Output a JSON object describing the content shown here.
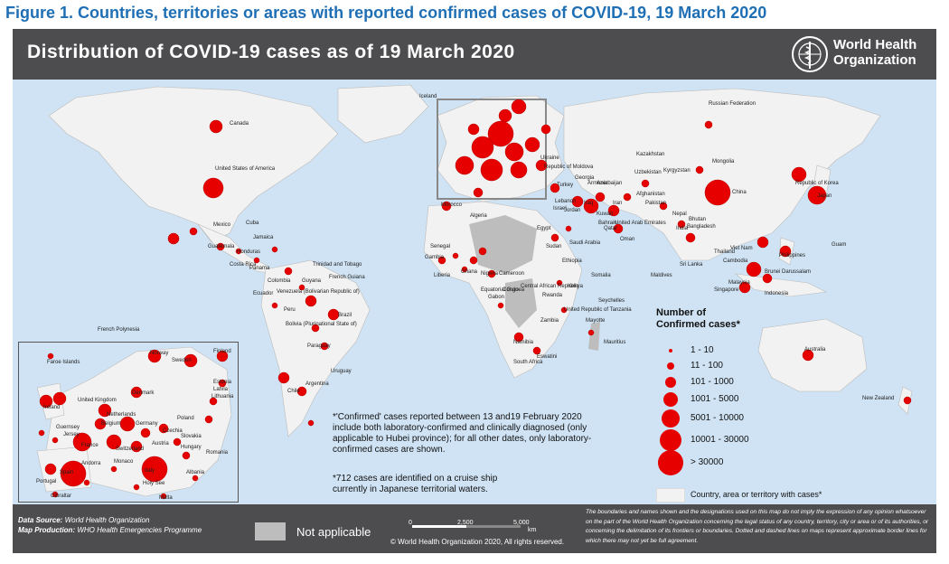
{
  "figure_title": "Figure 1. Countries, territories or areas with reported confirmed cases of COVID-19, 19 March 2020",
  "map_title": "Distribution of COVID-19  cases as of 19 March 2020",
  "organization": {
    "line1": "World Health",
    "line2": "Organization"
  },
  "legend": {
    "title_line1": "Number of",
    "title_line2": "Confirmed cases*",
    "classes": [
      "1 - 10",
      "11 - 100",
      "101 - 1000",
      "1001 - 5000",
      "5001 - 10000",
      "10001 - 30000",
      "> 30000"
    ],
    "territory_label": "Country, area or territory with cases*",
    "not_applicable": "Not applicable"
  },
  "notes": {
    "confirmed_note": [
      "*'Confirmed' cases reported between 13 and19 February 2020",
      "include both laboratory-confirmed and clinically diagnosed (only",
      "applicable to Hubei province); for all other dates, only laboratory-",
      "confirmed cases are shown."
    ],
    "cruise_note": [
      "*712 cases are identified on a cruise ship",
      "currently in Japanese territorial waters."
    ]
  },
  "footer": {
    "data_source_label": "Data Source:",
    "data_source": "World Health Organization",
    "production_label": "Map Production:",
    "production": "WHO Health Emergencies Programme",
    "copyright": "© World Health Organization  2020,  All rights reserved.",
    "scale_labels": [
      "0",
      "2,500",
      "5,000",
      "km"
    ],
    "disclaimer": "The boundaries and names shown and the designations used on this map do not imply the expression of any opinion whatsoever on the part of the World Health Organization concerning the legal status of any country, territory, city or area or of its authorities, or concerning the delimitation of its frontiers or boundaries. Dotted and dashed lines on maps represent approximate border lines for which there may not yet be full agreement."
  },
  "map_labels": [
    "Iceland",
    "Canada",
    "United States of America",
    "Mexico",
    "Russian Federation",
    "Kazakhstan",
    "Mongolia",
    "China",
    "Japan",
    "Republic of Korea",
    "India",
    "Nepal",
    "Bhutan",
    "Bangladesh",
    "Viet Nam",
    "Philippines",
    "Malaysia",
    "Brunei Darussalam",
    "Indonesia",
    "Singapore",
    "Sri Lanka",
    "Maldives",
    "Australia",
    "New Zealand",
    "Guam",
    "Cambodia",
    "Thailand",
    "Brazil",
    "Peru",
    "Bolivia (Plurinational State of)",
    "Paraguay",
    "Uruguay",
    "Argentina",
    "Chile",
    "Colombia",
    "Venezuela (Bolivarian Republic of)",
    "Ecuador",
    "Guyana",
    "French Guiana",
    "Costa Rica",
    "Panama",
    "Guatemala",
    "Honduras",
    "Cuba",
    "Jamaica",
    "Trinidad and Tobago",
    "French Polynesia",
    "Morocco",
    "Algeria",
    "Egypt",
    "Sudan",
    "Ethiopia",
    "Kenya",
    "Somalia",
    "South Africa",
    "Namibia",
    "Zambia",
    "Mauritius",
    "Seychelles",
    "Mayotte",
    "Senegal",
    "Gambia",
    "Liberia",
    "Ghana",
    "Nigeria",
    "Cameroon",
    "Gabon",
    "Congo",
    "Equatorial Guinea",
    "Central African Republic",
    "Rwanda",
    "Saudi Arabia",
    "United Arab Emirates",
    "Oman",
    "Qatar",
    "Bahrain",
    "Kuwait",
    "Iran",
    "Iraq",
    "Jordan",
    "Israel",
    "Lebanon",
    "Turkey",
    "Georgia",
    "Armenia",
    "Azerbaijan",
    "Uzbekistan",
    "Kyrgyzstan",
    "Afghanistan",
    "Pakistan",
    "Ukraine",
    "Republic of Moldova",
    "Eswatini",
    "United Republic of Tanzania"
  ],
  "inset_labels": [
    "Faroe Islands",
    "Norway",
    "Sweden",
    "Finland",
    "Estonia",
    "Latvia",
    "Lithuania",
    "Denmark",
    "Ireland",
    "United Kingdom",
    "Netherlands",
    "Belgium",
    "Germany",
    "Poland",
    "Czechia",
    "France",
    "Switzerland",
    "Austria",
    "Slovakia",
    "Hungary",
    "Romania",
    "Italy",
    "Spain",
    "Portugal",
    "Andorra",
    "Monaco",
    "Holy See",
    "Malta",
    "Gibraltar",
    "Albania",
    "Guernsey",
    "Jersey"
  ],
  "colors": {
    "case_red": "#e60000",
    "ocean": "#cfe3f4",
    "land": "#f2f2f2",
    "not_applicable": "#bdbdbd",
    "frame": "#4d4d4f",
    "title_blue": "#1f6fb5"
  }
}
